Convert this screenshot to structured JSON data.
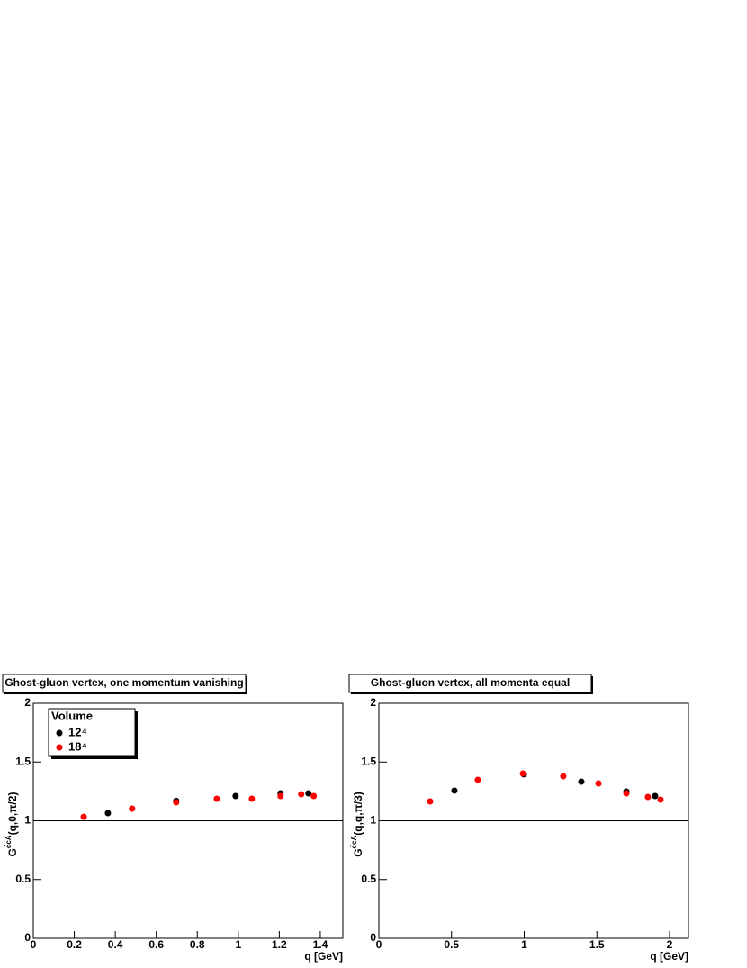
{
  "chart_data": [
    {
      "type": "scatter",
      "title": "Ghost-gluon vertex, one momentum vanishing",
      "xlabel": "q [GeV]",
      "ylabel": [
        "G",
        "c̄cA",
        "(q,0,π/2)"
      ],
      "xlim": [
        0,
        1.51
      ],
      "ylim": [
        0,
        2
      ],
      "xticks": [
        0,
        0.2,
        0.4,
        0.6,
        0.8,
        1,
        1.2,
        1.4
      ],
      "yticks": [
        0,
        0.5,
        1,
        1.5,
        2
      ],
      "hline": 1,
      "legend": "top-left",
      "legend_title": "Volume",
      "series": [
        {
          "name": "12⁴",
          "color": "#000000",
          "x": [
            0.364,
            0.697,
            0.987,
            1.206,
            1.342
          ],
          "values": [
            1.065,
            1.17,
            1.211,
            1.234,
            1.234
          ]
        },
        {
          "name": "18⁴",
          "color": "#ff0000",
          "x": [
            0.246,
            0.482,
            0.697,
            0.895,
            1.066,
            1.206,
            1.307,
            1.368
          ],
          "values": [
            1.034,
            1.103,
            1.157,
            1.188,
            1.188,
            1.211,
            1.226,
            1.211
          ]
        }
      ]
    },
    {
      "type": "scatter",
      "title": "Ghost-gluon vertex, all momenta equal",
      "xlabel": "q [GeV]",
      "ylabel": [
        "G",
        "c̄cA",
        "(q,q,π/3)"
      ],
      "xlim": [
        0,
        2.13
      ],
      "ylim": [
        0,
        2
      ],
      "xticks": [
        0,
        0.5,
        1,
        1.5,
        2
      ],
      "yticks": [
        0,
        0.5,
        1,
        1.5,
        2
      ],
      "hline": 1,
      "series": [
        {
          "color": "#000000",
          "x": [
            0.52,
            0.997,
            1.393,
            1.703,
            1.901
          ],
          "values": [
            1.257,
            1.395,
            1.333,
            1.249,
            1.211
          ]
        },
        {
          "color": "#ff0000",
          "x": [
            0.353,
            0.681,
            0.991,
            1.269,
            1.511,
            1.703,
            1.851,
            1.938
          ],
          "values": [
            1.165,
            1.349,
            1.402,
            1.379,
            1.318,
            1.234,
            1.203,
            1.18
          ]
        }
      ]
    }
  ]
}
